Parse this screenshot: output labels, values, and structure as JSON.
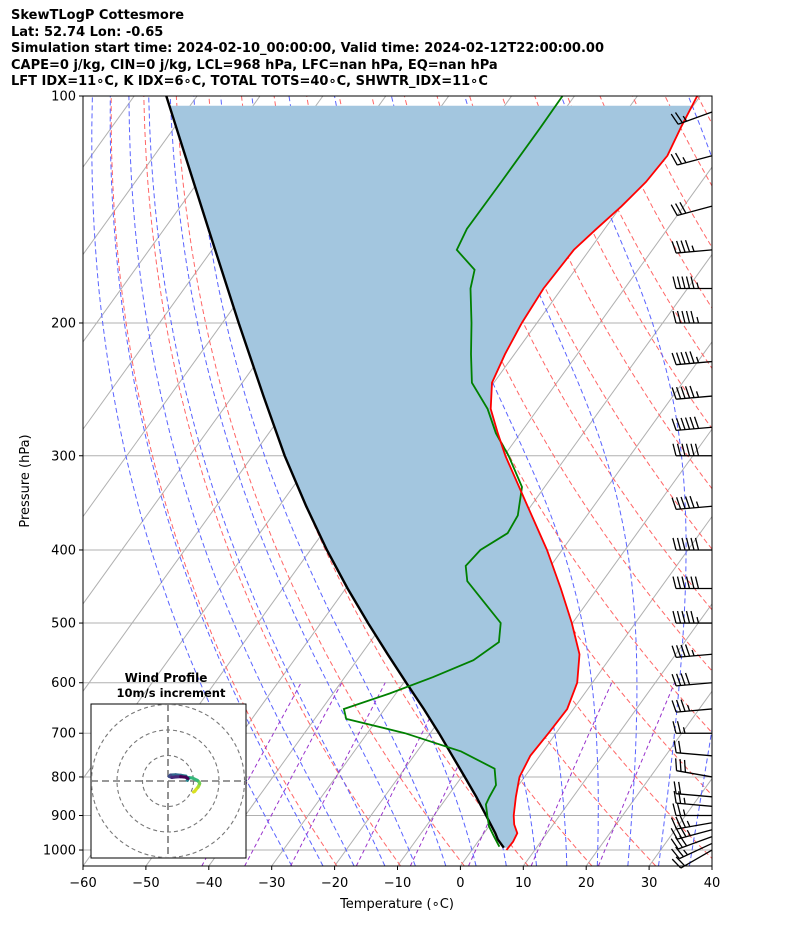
{
  "header": {
    "title": "SkewTLogP Cottesmore",
    "location": "Lat: 52.74   Lon: -0.65",
    "times": "Simulation start time: 2024-02-10_00:00:00, Valid time: 2024-02-12T22:00:00.00",
    "params": "CAPE=0 j/kg, CIN=0 j/kg, LCL=968 hPa, LFC=nan hPa, EQ=nan hPa",
    "indices": "LFT IDX=11∘C, K IDX=6∘C, TOTAL TOTS=40∘C, SHWTR_IDX=11∘C"
  },
  "colors": {
    "temperature": "#ff0000",
    "dewpoint": "#008000",
    "parcel": "#000000",
    "cape_fill": "#a3c6df",
    "isotherm": "#b0b0b0",
    "dry_adiabat": "#ff6666",
    "moist_adiabat": "#5a64ff",
    "mixing_ratio": "#9933cc"
  },
  "chart_data": {
    "type": "skewt",
    "xlabel": "Temperature (∘C)",
    "ylabel": "Pressure (hPa)",
    "xlim": [
      -60,
      40
    ],
    "ylim": [
      1050,
      100
    ],
    "x_ticks": [
      -60,
      -50,
      -40,
      -30,
      -20,
      -10,
      0,
      10,
      20,
      30,
      40
    ],
    "y_ticks": [
      1000,
      900,
      800,
      700,
      600,
      500,
      400,
      300,
      200,
      100
    ],
    "grid": true,
    "temperature": {
      "pressure": [
        1000,
        975,
        950,
        925,
        900,
        850,
        800,
        750,
        700,
        650,
        600,
        550,
        500,
        450,
        400,
        350,
        300,
        280,
        260,
        240,
        220,
        200,
        180,
        160,
        150,
        140,
        130,
        120,
        110,
        100
      ],
      "values": [
        5.5,
        5.6,
        5.3,
        3.8,
        2.7,
        0.9,
        -0.8,
        -1.5,
        -1.2,
        -1.0,
        -2.4,
        -5.3,
        -10.1,
        -15.8,
        -22.4,
        -30.5,
        -39.8,
        -43.6,
        -47.5,
        -50.3,
        -51.5,
        -52.4,
        -52.9,
        -52.5,
        -51.3,
        -49.9,
        -48.8,
        -48.4,
        -49.5,
        -50.5
      ]
    },
    "dewpoint": {
      "pressure": [
        990,
        960,
        930,
        900,
        870,
        850,
        820,
        780,
        740,
        700,
        670,
        650,
        620,
        590,
        560,
        530,
        500,
        460,
        440,
        420,
        400,
        380,
        360,
        330,
        300,
        280,
        260,
        240,
        220,
        200,
        180,
        170,
        160,
        150,
        130,
        110,
        100
      ],
      "values": [
        4.0,
        2.0,
        0.0,
        -1.5,
        -3.0,
        -3.3,
        -3.6,
        -5.7,
        -13.0,
        -24.0,
        -35.0,
        -36.5,
        -31.0,
        -26.0,
        -21.5,
        -19.5,
        -21.4,
        -28.0,
        -31.5,
        -33.5,
        -33.0,
        -30.6,
        -31.0,
        -33.6,
        -39.3,
        -43.9,
        -48.0,
        -53.5,
        -56.9,
        -60.4,
        -64.5,
        -66.0,
        -71.1,
        -71.9,
        -71.8,
        -71.8,
        -71.9
      ]
    },
    "parcel": {
      "pressure": [
        993,
        968,
        950,
        900,
        850,
        800,
        750,
        700,
        650,
        600,
        550,
        500,
        450,
        400,
        350,
        300,
        250,
        200,
        150,
        100
      ],
      "values": [
        4.8,
        2.9,
        1.8,
        -1.7,
        -5.4,
        -9.5,
        -13.9,
        -18.6,
        -23.8,
        -29.6,
        -35.8,
        -42.5,
        -49.7,
        -57.4,
        -65.7,
        -74.9,
        -85.1,
        -97.4,
        -113.0,
        -134.9
      ]
    },
    "wind_barbs": {
      "pressure": [
        1000,
        980,
        960,
        940,
        920,
        900,
        875,
        850,
        800,
        750,
        700,
        650,
        600,
        550,
        500,
        450,
        400,
        350,
        300,
        275,
        250,
        225,
        200,
        180,
        160,
        140,
        120,
        105
      ],
      "speed_kt": [
        20,
        25,
        30,
        35,
        35,
        25,
        25,
        20,
        30,
        20,
        25,
        35,
        40,
        45,
        55,
        60,
        60,
        55,
        60,
        60,
        55,
        55,
        55,
        55,
        45,
        30,
        25,
        25
      ],
      "direction_deg": [
        240,
        245,
        250,
        255,
        260,
        270,
        275,
        275,
        280,
        275,
        270,
        265,
        265,
        265,
        270,
        270,
        270,
        265,
        270,
        265,
        265,
        265,
        270,
        270,
        265,
        255,
        255,
        250
      ]
    },
    "hodograph": {
      "title": "Wind Profile",
      "subtitle": "10m/s increment",
      "u": [
        10,
        10.5,
        11.0,
        11.8,
        12.2,
        12.4,
        12.2,
        11.5,
        9.5,
        8.2,
        7.7,
        7.6,
        7.8,
        7.0,
        5.0,
        3.0,
        1.0,
        0.5,
        1.5,
        3.0,
        5.0,
        7.0,
        7.8
      ],
      "v": [
        -4.3,
        -4.0,
        -3.3,
        -2.4,
        -1.6,
        -1.0,
        -0.4,
        0.2,
        1.2,
        1.3,
        0.7,
        0.3,
        0.8,
        1.9,
        2.2,
        2.4,
        2.3,
        1.8,
        1.4,
        1.6,
        1.7,
        1.5,
        1.0
      ],
      "rings_ms": [
        10,
        20,
        30
      ]
    }
  }
}
